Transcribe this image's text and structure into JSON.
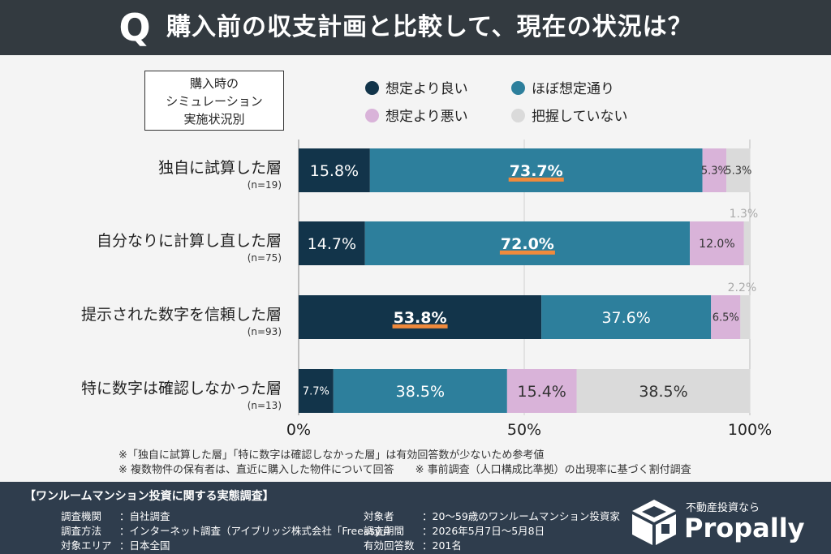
{
  "header": {
    "q_mark": "Q",
    "title": "購入前の収支計画と比較して、現在の状況は？"
  },
  "sim_box": {
    "lines": [
      "購入時の",
      "シミュレーション",
      "実施状況別"
    ]
  },
  "colors": {
    "header_bg": "#333a40",
    "footer_bg": "#2f3d4d",
    "series": [
      "#12344a",
      "#2d7f9c",
      "#d9b3d9",
      "#dadada"
    ],
    "highlight": "#f08a3c"
  },
  "chart_data": {
    "type": "bar",
    "orientation": "horizontal",
    "stacked": true,
    "xlim": [
      0,
      100
    ],
    "x_ticks": [
      "0%",
      "50%",
      "100%"
    ],
    "grid": true,
    "legend_position": "top",
    "categories": [
      {
        "label": "独自に試算した層",
        "n": "(n=19)"
      },
      {
        "label": "自分なりに計算し直した層",
        "n": "(n=75)"
      },
      {
        "label": "提示された数字を信頼した層",
        "n": "(n=93)"
      },
      {
        "label": "特に数字は確認しなかった層",
        "n": "(n=13)"
      }
    ],
    "series": [
      {
        "name": "想定より良い",
        "values": [
          15.8,
          14.7,
          53.8,
          7.7
        ],
        "labels": [
          "15.8%",
          "14.7%",
          "53.8%",
          "7.7%"
        ]
      },
      {
        "name": "ほぼ想定通り",
        "values": [
          73.7,
          72.0,
          37.6,
          38.5
        ],
        "labels": [
          "73.7%",
          "72.0%",
          "37.6%",
          "38.5%"
        ]
      },
      {
        "name": "想定より悪い",
        "values": [
          5.3,
          12.0,
          6.5,
          15.4
        ],
        "labels": [
          "5.3%",
          "12.0%",
          "6.5%",
          "15.4%"
        ]
      },
      {
        "name": "把握していない",
        "values": [
          5.3,
          1.3,
          2.2,
          38.5
        ],
        "labels": [
          "5.3%",
          "1.3%",
          "2.2%",
          "38.5%"
        ]
      }
    ],
    "highlighted": [
      [
        0,
        1
      ],
      [
        1,
        1
      ],
      [
        2,
        0
      ]
    ]
  },
  "notes": [
    "※「独自に試算した層」「特に数字は確認しなかった層」は有効回答数が少ないため参考値",
    "※ 複数物件の保有者は、直近に購入した物件について回答　　※ 事前調査（人口構成比準拠）の出現率に基づく割付調査"
  ],
  "footer": {
    "title": "【ワンルームマンション投資に関する実態調査】",
    "left": [
      {
        "label": "調査機関",
        "value": "：自社調査"
      },
      {
        "label": "調査方法",
        "value": "：インターネット調査（アイブリッジ株式会社「Freeasy」）"
      },
      {
        "label": "対象エリア",
        "value": "：日本全国"
      }
    ],
    "right": [
      {
        "label": "対象者",
        "value": "：20〜59歳のワンルームマンション投資家"
      },
      {
        "label": "調査期間",
        "value": "：2026年5月7日〜5月8日"
      },
      {
        "label": "有効回答数",
        "value": "：201名"
      }
    ]
  },
  "brand": {
    "tagline": "不動産投資なら",
    "name": "Propally",
    "icon": "house-box-icon"
  }
}
